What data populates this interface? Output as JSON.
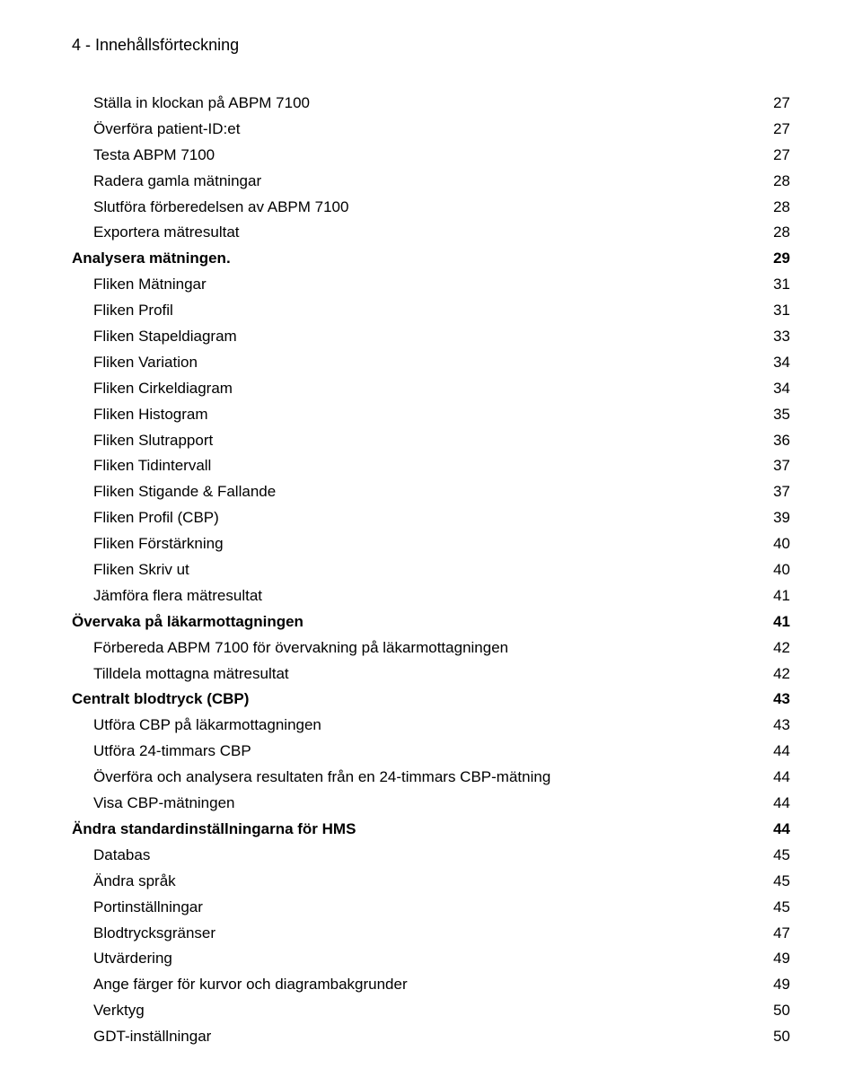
{
  "header": "4 - Innehållsförteckning",
  "text_color": "#000000",
  "bg_color": "#ffffff",
  "font_family": "Arial",
  "base_fontsize_pt": 13,
  "toc": [
    {
      "label": "Ställa in klockan på ABPM 7100",
      "page": "27",
      "indent": 1,
      "bold": false
    },
    {
      "label": "Överföra patient-ID:et",
      "page": "27",
      "indent": 1,
      "bold": false
    },
    {
      "label": "Testa ABPM 7100",
      "page": "27",
      "indent": 1,
      "bold": false
    },
    {
      "label": "Radera gamla mätningar",
      "page": "28",
      "indent": 1,
      "bold": false
    },
    {
      "label": "Slutföra förberedelsen av ABPM 7100",
      "page": "28",
      "indent": 1,
      "bold": false
    },
    {
      "label": "Exportera mätresultat",
      "page": "28",
      "indent": 1,
      "bold": false
    },
    {
      "label": "Analysera mätningen.",
      "page": "29",
      "indent": 0,
      "bold": true
    },
    {
      "label": "Fliken Mätningar",
      "page": "31",
      "indent": 1,
      "bold": false
    },
    {
      "label": "Fliken Profil",
      "page": "31",
      "indent": 1,
      "bold": false
    },
    {
      "label": "Fliken Stapeldiagram",
      "page": "33",
      "indent": 1,
      "bold": false
    },
    {
      "label": "Fliken Variation",
      "page": "34",
      "indent": 1,
      "bold": false
    },
    {
      "label": "Fliken Cirkeldiagram",
      "page": "34",
      "indent": 1,
      "bold": false
    },
    {
      "label": "Fliken Histogram",
      "page": "35",
      "indent": 1,
      "bold": false
    },
    {
      "label": "Fliken Slutrapport",
      "page": "36",
      "indent": 1,
      "bold": false
    },
    {
      "label": "Fliken Tidintervall",
      "page": "37",
      "indent": 1,
      "bold": false
    },
    {
      "label": "Fliken Stigande & Fallande",
      "page": "37",
      "indent": 1,
      "bold": false
    },
    {
      "label": "Fliken Profil (CBP)",
      "page": "39",
      "indent": 1,
      "bold": false
    },
    {
      "label": "Fliken Förstärkning",
      "page": "40",
      "indent": 1,
      "bold": false
    },
    {
      "label": "Fliken Skriv ut",
      "page": "40",
      "indent": 1,
      "bold": false
    },
    {
      "label": "Jämföra flera mätresultat",
      "page": "41",
      "indent": 1,
      "bold": false
    },
    {
      "label": "Övervaka på läkarmottagningen",
      "page": "41",
      "indent": 0,
      "bold": true
    },
    {
      "label": "Förbereda ABPM 7100 för övervakning på läkarmottagningen",
      "page": "42",
      "indent": 1,
      "bold": false
    },
    {
      "label": "Tilldela mottagna mätresultat",
      "page": "42",
      "indent": 1,
      "bold": false
    },
    {
      "label": "Centralt blodtryck (CBP)",
      "page": "43",
      "indent": 0,
      "bold": true
    },
    {
      "label": "Utföra CBP på läkarmottagningen",
      "page": "43",
      "indent": 1,
      "bold": false
    },
    {
      "label": "Utföra 24-timmars CBP",
      "page": "44",
      "indent": 1,
      "bold": false
    },
    {
      "label": "Överföra och analysera resultaten från en 24-timmars CBP-mätning",
      "page": "44",
      "indent": 1,
      "bold": false
    },
    {
      "label": "Visa CBP-mätningen",
      "page": "44",
      "indent": 1,
      "bold": false
    },
    {
      "label": "Ändra standardinställningarna för HMS",
      "page": "44",
      "indent": 0,
      "bold": true
    },
    {
      "label": "Databas",
      "page": "45",
      "indent": 1,
      "bold": false
    },
    {
      "label": "Ändra språk",
      "page": "45",
      "indent": 1,
      "bold": false
    },
    {
      "label": "Portinställningar",
      "page": "45",
      "indent": 1,
      "bold": false
    },
    {
      "label": "Blodtrycksgränser",
      "page": "47",
      "indent": 1,
      "bold": false
    },
    {
      "label": "Utvärdering",
      "page": "49",
      "indent": 1,
      "bold": false
    },
    {
      "label": "Ange färger för kurvor och diagrambakgrunder",
      "page": "49",
      "indent": 1,
      "bold": false
    },
    {
      "label": "Verktyg",
      "page": "50",
      "indent": 1,
      "bold": false
    },
    {
      "label": "GDT-inställningar",
      "page": "50",
      "indent": 1,
      "bold": false
    }
  ]
}
